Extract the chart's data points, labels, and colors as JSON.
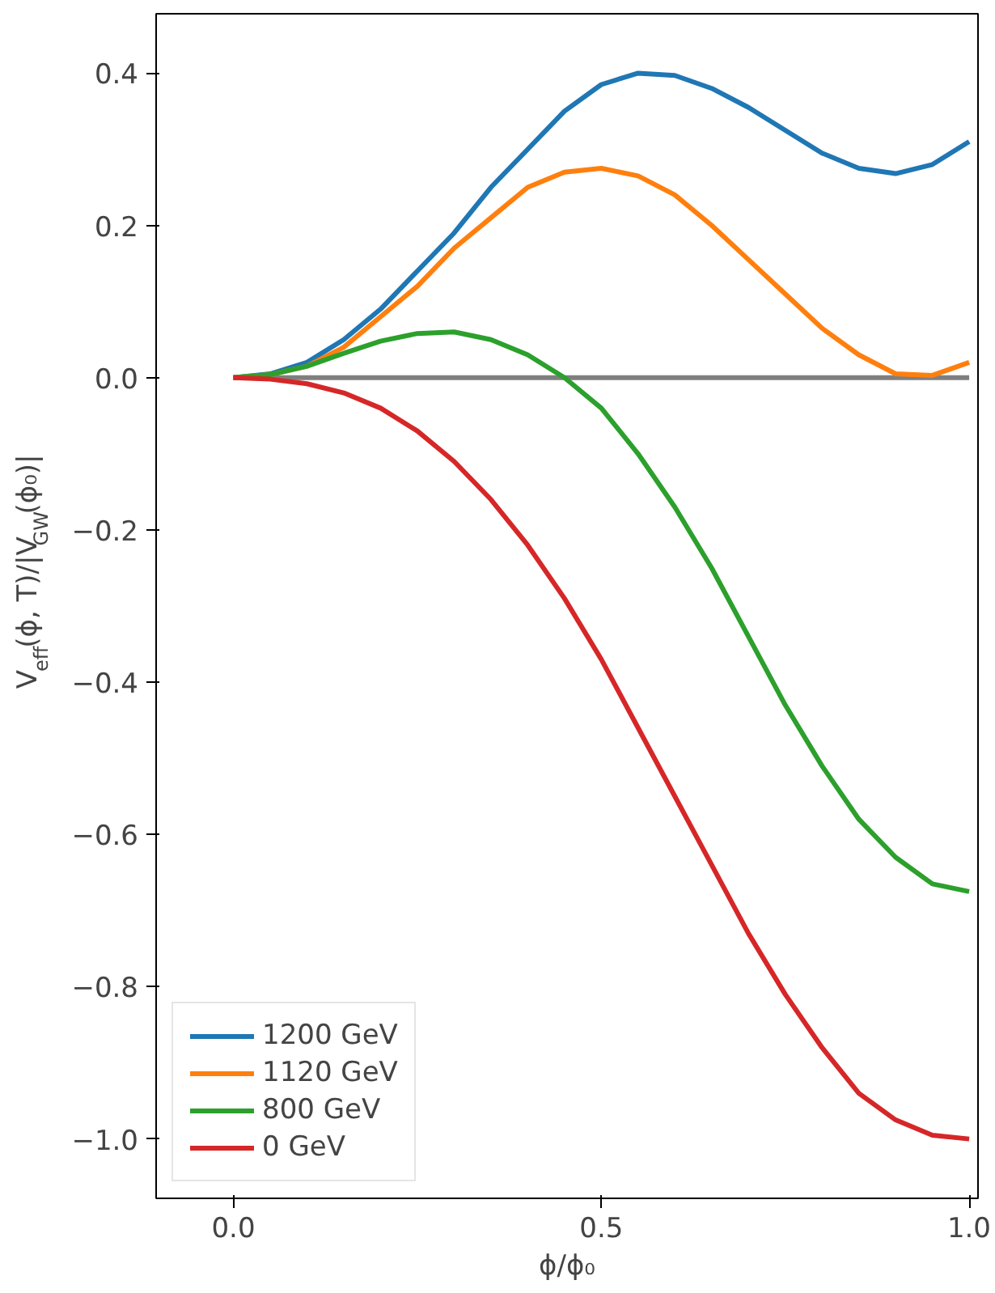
{
  "chart_data": {
    "type": "line",
    "xlabel": "ϕ/ϕ₀",
    "ylabel": "V$_{eff}$(ϕ, T)/|V$_{GW}$(ϕ₀)|",
    "x": [
      0,
      0.05,
      0.1,
      0.15,
      0.2,
      0.25,
      0.3,
      0.35,
      0.4,
      0.45,
      0.5,
      0.55,
      0.6,
      0.65,
      0.7,
      0.75,
      0.8,
      0.85,
      0.9,
      0.95,
      1.0
    ],
    "series": [
      {
        "color": "#7f7f7f",
        "values": [
          0,
          0,
          0,
          0,
          0,
          0,
          0,
          0,
          0,
          0,
          0,
          0,
          0,
          0,
          0,
          0,
          0,
          0,
          0,
          0,
          0
        ]
      },
      {
        "name": "1200 GeV",
        "color": "#1f77b4",
        "values": [
          0,
          0.005,
          0.02,
          0.05,
          0.09,
          0.14,
          0.19,
          0.25,
          0.3,
          0.35,
          0.385,
          0.4,
          0.397,
          0.38,
          0.355,
          0.325,
          0.295,
          0.275,
          0.268,
          0.28,
          0.31
        ]
      },
      {
        "name": "1120 GeV",
        "color": "#ff7f0e",
        "values": [
          0,
          0.004,
          0.015,
          0.04,
          0.08,
          0.12,
          0.17,
          0.21,
          0.25,
          0.27,
          0.275,
          0.265,
          0.24,
          0.2,
          0.155,
          0.11,
          0.065,
          0.03,
          0.005,
          0.003,
          0.02
        ]
      },
      {
        "name": "800 GeV",
        "color": "#2ca02c",
        "values": [
          0,
          0.004,
          0.015,
          0.032,
          0.048,
          0.058,
          0.06,
          0.05,
          0.03,
          0.0,
          -0.04,
          -0.1,
          -0.17,
          -0.25,
          -0.34,
          -0.43,
          -0.51,
          -0.58,
          -0.63,
          -0.665,
          -0.675
        ]
      },
      {
        "name": "0 GeV",
        "color": "#d62728",
        "values": [
          0,
          -0.002,
          -0.008,
          -0.02,
          -0.04,
          -0.07,
          -0.11,
          -0.16,
          -0.22,
          -0.29,
          -0.37,
          -0.46,
          -0.55,
          -0.64,
          -0.73,
          -0.81,
          -0.88,
          -0.94,
          -0.975,
          -0.995,
          -1.0
        ]
      }
    ],
    "xlim": [
      -0.105,
      1.012
    ],
    "ylim": [
      -1.078,
      0.478
    ],
    "xticks": [
      {
        "value": 0,
        "label": "0.0"
      },
      {
        "value": 0.5,
        "label": "0.5"
      },
      {
        "value": 1.0,
        "label": "1.0"
      }
    ],
    "yticks": [
      {
        "value": -1.0,
        "label": "−1.0"
      },
      {
        "value": -0.8,
        "label": "−0.8"
      },
      {
        "value": -0.6,
        "label": "−0.6"
      },
      {
        "value": -0.4,
        "label": "−0.4"
      },
      {
        "value": -0.2,
        "label": "−0.2"
      },
      {
        "value": 0.0,
        "label": "0.0"
      },
      {
        "value": 0.2,
        "label": "0.2"
      },
      {
        "value": 0.4,
        "label": "0.4"
      }
    ],
    "grid": false,
    "legend": "bottom left"
  }
}
